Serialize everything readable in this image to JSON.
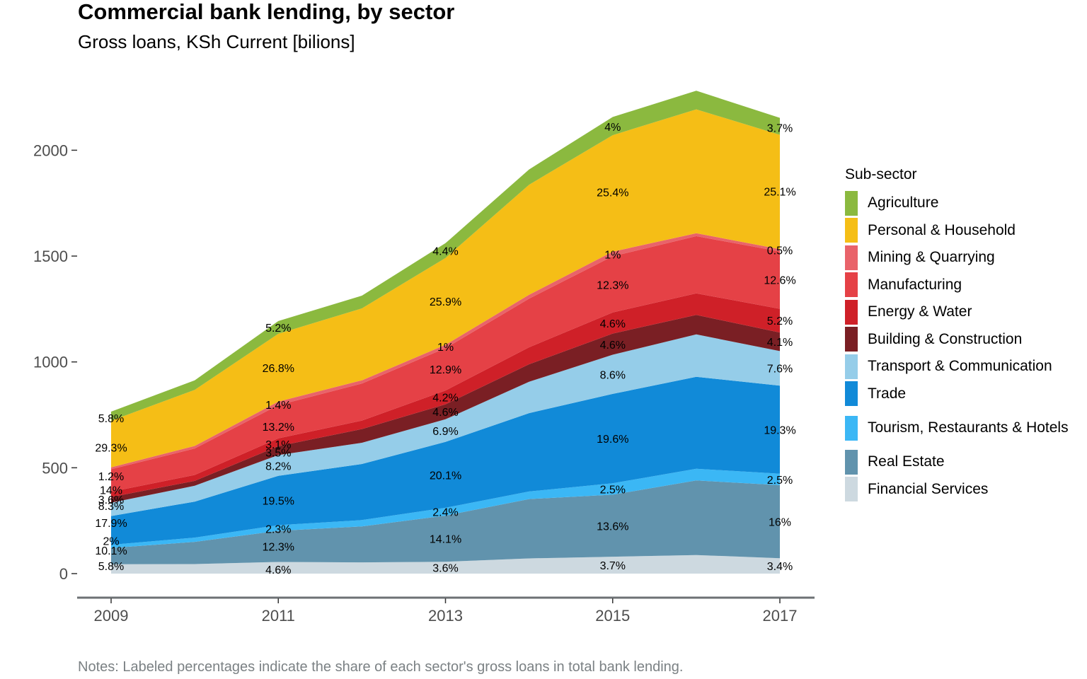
{
  "chart_data": {
    "type": "area",
    "title": "Commercial bank lending, by sector",
    "subtitle": "Gross loans, KSh Current [bilions]",
    "notes": "Notes: Labeled percentages indicate the share of each sector's gross loans in total bank lending.",
    "xlabel": "",
    "ylabel": "",
    "x": [
      2009,
      2010,
      2011,
      2012,
      2013,
      2014,
      2015,
      2016,
      2017
    ],
    "xticks": [
      "2009",
      "2011",
      "2013",
      "2015",
      "2017"
    ],
    "yticks": [
      "0",
      "500",
      "1000",
      "1500",
      "2000"
    ],
    "ylim": [
      -115,
      2275
    ],
    "xlim": [
      2008.8,
      2017.2
    ],
    "grid": false,
    "legend_title": "Sub-sector",
    "legend_position": "right",
    "stack_order_bottom_to_top": [
      "Financial Services",
      "Real Estate",
      "Tourism, Restaurants & Hotels",
      "Trade",
      "Transport & Communication",
      "Building & Construction",
      "Energy & Water",
      "Manufacturing",
      "Mining & Quarrying",
      "Personal & Household",
      "Agriculture"
    ],
    "series": [
      {
        "name": "Agriculture",
        "color": "#8bb93f",
        "values": [
          43,
          45,
          60,
          60,
          70,
          72,
          86,
          88,
          80
        ]
      },
      {
        "name": "Personal & Household",
        "color": "#f5be16",
        "values": [
          220,
          265,
          320,
          340,
          410,
          520,
          550,
          585,
          540
        ]
      },
      {
        "name": "Mining & Quarrying",
        "color": "#e9636a",
        "values": [
          9,
          12,
          17,
          15,
          16,
          18,
          22,
          14,
          11
        ]
      },
      {
        "name": "Manufacturing",
        "color": "#e54146",
        "values": [
          106,
          125,
          157,
          175,
          200,
          230,
          265,
          270,
          271
        ]
      },
      {
        "name": "Energy & Water",
        "color": "#cf2028",
        "values": [
          25,
          28,
          37,
          40,
          65,
          80,
          100,
          102,
          112
        ]
      },
      {
        "name": "Building & Construction",
        "color": "#7a1f24",
        "values": [
          27,
          23,
          42,
          65,
          71,
          83,
          100,
          92,
          88
        ]
      },
      {
        "name": "Transport & Communication",
        "color": "#95cde9",
        "values": [
          63,
          75,
          98,
          100,
          107,
          148,
          185,
          200,
          163
        ]
      },
      {
        "name": "Trade",
        "color": "#118ad8",
        "values": [
          136,
          170,
          233,
          265,
          311,
          370,
          422,
          435,
          416
        ]
      },
      {
        "name": "Tourism, Restaurants & Hotels",
        "color": "#3bb7f5",
        "values": [
          15,
          20,
          27,
          30,
          37,
          36,
          54,
          55,
          54
        ]
      },
      {
        "name": "Real Estate",
        "color": "#6193ad",
        "values": [
          77,
          105,
          147,
          170,
          218,
          280,
          293,
          352,
          345
        ]
      },
      {
        "name": "Financial Services",
        "color": "#cdd9e0",
        "values": [
          44,
          45,
          55,
          53,
          56,
          72,
          80,
          88,
          73
        ]
      }
    ],
    "annotations": [
      {
        "x": 2009,
        "y": 36,
        "text": "5.8%"
      },
      {
        "x": 2009,
        "y": 110,
        "text": "10.1%"
      },
      {
        "x": 2009,
        "y": 156,
        "text": "2%"
      },
      {
        "x": 2009,
        "y": 240,
        "text": "17.9%"
      },
      {
        "x": 2009,
        "y": 320,
        "text": "8.3%"
      },
      {
        "x": 2009,
        "y": 350,
        "text": "3.6%"
      },
      {
        "x": 2009,
        "y": 396,
        "text": "14%"
      },
      {
        "x": 2009,
        "y": 461,
        "text": "1.2%"
      },
      {
        "x": 2009,
        "y": 597,
        "text": "29.3%"
      },
      {
        "x": 2009,
        "y": 735,
        "text": "5.8%"
      },
      {
        "x": 2011,
        "y": 20,
        "text": "4.6%"
      },
      {
        "x": 2011,
        "y": 128,
        "text": "12.3%"
      },
      {
        "x": 2011,
        "y": 212,
        "text": "2.3%"
      },
      {
        "x": 2011,
        "y": 345,
        "text": "19.5%"
      },
      {
        "x": 2011,
        "y": 510,
        "text": "8.2%"
      },
      {
        "x": 2011,
        "y": 573,
        "text": "3.5%"
      },
      {
        "x": 2011,
        "y": 611,
        "text": "3.1%"
      },
      {
        "x": 2011,
        "y": 695,
        "text": "13.2%"
      },
      {
        "x": 2011,
        "y": 799,
        "text": "1.4%"
      },
      {
        "x": 2011,
        "y": 973,
        "text": "26.8%"
      },
      {
        "x": 2011,
        "y": 1162,
        "text": "5.2%"
      },
      {
        "x": 2013,
        "y": 28,
        "text": "3.6%"
      },
      {
        "x": 2013,
        "y": 165,
        "text": "14.1%"
      },
      {
        "x": 2013,
        "y": 292,
        "text": "2.4%"
      },
      {
        "x": 2013,
        "y": 466,
        "text": "20.1%"
      },
      {
        "x": 2013,
        "y": 675,
        "text": "6.9%"
      },
      {
        "x": 2013,
        "y": 765,
        "text": "4.6%"
      },
      {
        "x": 2013,
        "y": 833,
        "text": "4.2%"
      },
      {
        "x": 2013,
        "y": 965,
        "text": "12.9%"
      },
      {
        "x": 2013,
        "y": 1073,
        "text": "1%"
      },
      {
        "x": 2013,
        "y": 1286,
        "text": "25.9%"
      },
      {
        "x": 2013,
        "y": 1526,
        "text": "4.4%"
      },
      {
        "x": 2015,
        "y": 40,
        "text": "3.7%"
      },
      {
        "x": 2015,
        "y": 226,
        "text": "13.6%"
      },
      {
        "x": 2015,
        "y": 400,
        "text": "2.5%"
      },
      {
        "x": 2015,
        "y": 638,
        "text": "19.6%"
      },
      {
        "x": 2015,
        "y": 941,
        "text": "8.6%"
      },
      {
        "x": 2015,
        "y": 1083,
        "text": "4.6%"
      },
      {
        "x": 2015,
        "y": 1183,
        "text": "4.6%"
      },
      {
        "x": 2015,
        "y": 1365,
        "text": "12.3%"
      },
      {
        "x": 2015,
        "y": 1509,
        "text": "1%"
      },
      {
        "x": 2015,
        "y": 1803,
        "text": "25.4%"
      },
      {
        "x": 2015,
        "y": 2111,
        "text": "4%"
      },
      {
        "x": 2017,
        "y": 36,
        "text": "3.4%"
      },
      {
        "x": 2017,
        "y": 245,
        "text": "16%"
      },
      {
        "x": 2017,
        "y": 445,
        "text": "2.5%"
      },
      {
        "x": 2017,
        "y": 680,
        "text": "19.3%"
      },
      {
        "x": 2017,
        "y": 970,
        "text": "7.6%"
      },
      {
        "x": 2017,
        "y": 1096,
        "text": "4.1%"
      },
      {
        "x": 2017,
        "y": 1196,
        "text": "5.2%"
      },
      {
        "x": 2017,
        "y": 1388,
        "text": "12.6%"
      },
      {
        "x": 2017,
        "y": 1528,
        "text": "0.5%"
      },
      {
        "x": 2017,
        "y": 1806,
        "text": "25.1%"
      },
      {
        "x": 2017,
        "y": 2107,
        "text": "3.7%"
      }
    ]
  },
  "legend_items": [
    {
      "label": "Agriculture",
      "color": "#8bb93f"
    },
    {
      "label": "Personal & Household",
      "color": "#f5be16"
    },
    {
      "label": "Mining & Quarrying",
      "color": "#e9636a"
    },
    {
      "label": "Manufacturing",
      "color": "#e54146"
    },
    {
      "label": "Energy & Water",
      "color": "#cf2028"
    },
    {
      "label": "Building & Construction",
      "color": "#7a1f24"
    },
    {
      "label": "Transport & Communication",
      "color": "#95cde9"
    },
    {
      "label": "Trade",
      "color": "#118ad8"
    },
    {
      "label": "Tourism, Restaurants & Hotels",
      "color": "#3bb7f5"
    },
    {
      "label": "Real Estate",
      "color": "#6193ad"
    },
    {
      "label": "Financial Services",
      "color": "#cdd9e0"
    }
  ]
}
